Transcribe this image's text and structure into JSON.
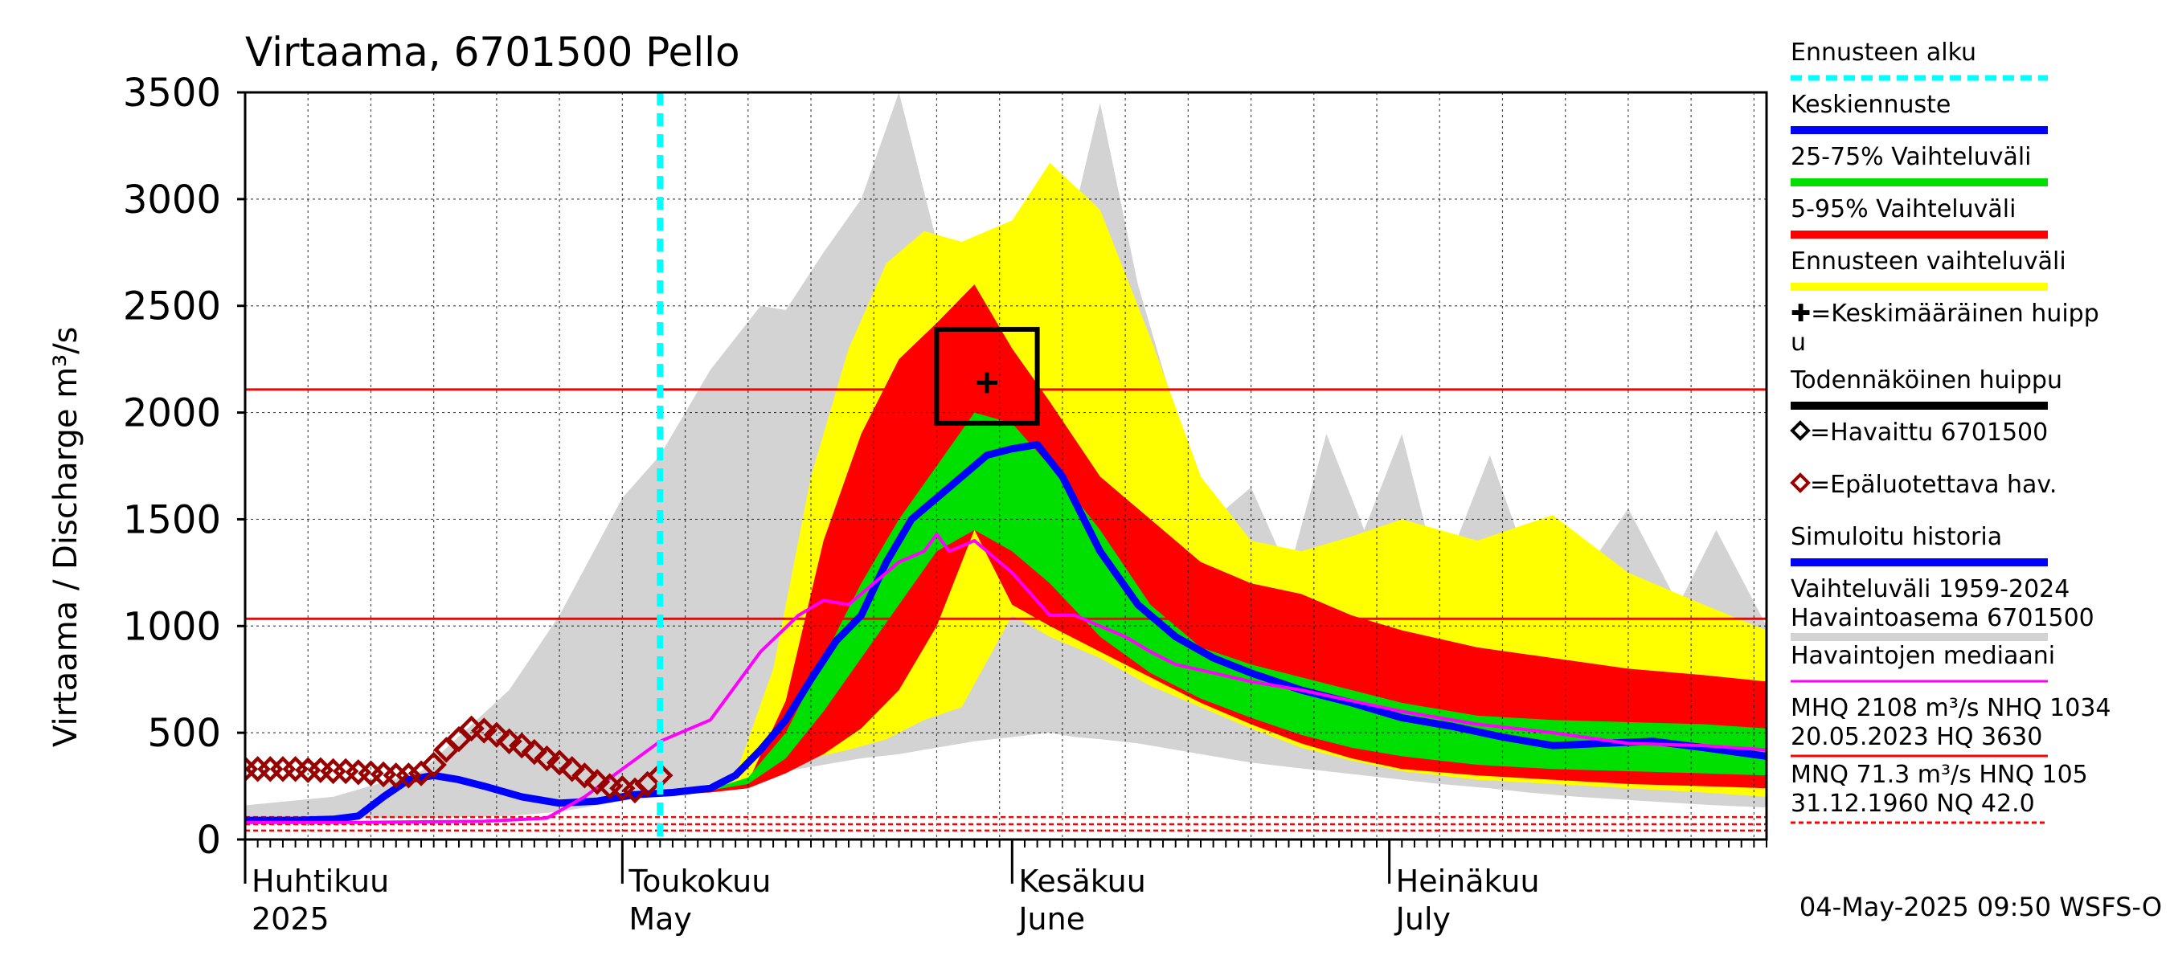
{
  "chart_data": {
    "type": "area",
    "title": "Virtaama, 6701500 Pello",
    "ylabel": "Virtaama / Discharge   m³/s",
    "ylim": [
      0,
      3500
    ],
    "xlim": [
      "2025-04-01",
      "2025-07-31"
    ],
    "yticks": [
      0,
      500,
      1000,
      1500,
      2000,
      2500,
      3000,
      3500
    ],
    "grid": true,
    "legend_position": "right",
    "x_month_labels": [
      {
        "fi": "Huhtikuu",
        "en": "2025",
        "date": "2025-04-01"
      },
      {
        "fi": "Toukokuu",
        "en": "May",
        "date": "2025-05-01"
      },
      {
        "fi": "Kesäkuu",
        "en": "June",
        "date": "2025-06-01"
      },
      {
        "fi": "Heinäkuu",
        "en": "July",
        "date": "2025-07-01"
      }
    ],
    "forecast_start": "2025-05-04",
    "reference_lines": [
      {
        "label": "MHQ",
        "value": 2108,
        "color": "#ff0000",
        "style": "solid"
      },
      {
        "label": "NHQ",
        "value": 1034,
        "color": "#ff0000",
        "style": "solid"
      },
      {
        "label": "MNQ",
        "value": 71.3,
        "color": "#ff0000",
        "style": "dashed"
      },
      {
        "label": "HNQ",
        "value": 105,
        "color": "#ff0000",
        "style": "dashed"
      },
      {
        "label": "NQ",
        "value": 42.0,
        "color": "#ff0000",
        "style": "dashed"
      }
    ],
    "probable_peak_box": {
      "x0": "2025-05-26",
      "x1": "2025-06-03",
      "y0": 1950,
      "y1": 2390
    },
    "mean_peak_marker": {
      "x": "2025-05-30",
      "y": 2140
    },
    "series": [
      {
        "name": "Vaihteluväli 1959-2024 Havaintoasema 6701500",
        "type": "band",
        "color": "#d3d3d3",
        "x": [
          "2025-04-01",
          "2025-04-08",
          "2025-04-15",
          "2025-04-22",
          "2025-04-26",
          "2025-05-01",
          "2025-05-04",
          "2025-05-08",
          "2025-05-12",
          "2025-05-14",
          "2025-05-17",
          "2025-05-20",
          "2025-05-23",
          "2025-05-26",
          "2025-05-29",
          "2025-06-01",
          "2025-06-04",
          "2025-06-06",
          "2025-06-08",
          "2025-06-11",
          "2025-06-14",
          "2025-06-17",
          "2025-06-20",
          "2025-06-23",
          "2025-06-26",
          "2025-06-29",
          "2025-07-02",
          "2025-07-05",
          "2025-07-09",
          "2025-07-12",
          "2025-07-16",
          "2025-07-20",
          "2025-07-24",
          "2025-07-27",
          "2025-07-31"
        ],
        "upper": [
          160,
          200,
          320,
          700,
          1050,
          1600,
          1800,
          2200,
          2500,
          2480,
          2750,
          3000,
          3500,
          2800,
          2700,
          2650,
          2700,
          2950,
          3450,
          2600,
          2000,
          1500,
          1650,
          1250,
          1900,
          1450,
          1900,
          1200,
          1800,
          1300,
          1200,
          1550,
          1100,
          1450,
          1000
        ],
        "lower": [
          100,
          100,
          100,
          110,
          130,
          180,
          220,
          260,
          300,
          320,
          350,
          380,
          400,
          430,
          460,
          480,
          500,
          480,
          470,
          450,
          420,
          390,
          360,
          340,
          320,
          300,
          280,
          260,
          240,
          220,
          200,
          185,
          170,
          160,
          150
        ]
      },
      {
        "name": "Ennusteen vaihteluväli",
        "type": "band",
        "color": "#ffff00",
        "x": [
          "2025-05-04",
          "2025-05-08",
          "2025-05-10",
          "2025-05-13",
          "2025-05-16",
          "2025-05-19",
          "2025-05-22",
          "2025-05-25",
          "2025-05-28",
          "2025-06-01",
          "2025-06-04",
          "2025-06-08",
          "2025-06-12",
          "2025-06-16",
          "2025-06-20",
          "2025-06-24",
          "2025-06-28",
          "2025-07-02",
          "2025-07-08",
          "2025-07-14",
          "2025-07-20",
          "2025-07-26",
          "2025-07-31"
        ],
        "upper": [
          200,
          240,
          300,
          800,
          1700,
          2300,
          2700,
          2850,
          2800,
          2900,
          3170,
          2950,
          2350,
          1700,
          1400,
          1350,
          1420,
          1500,
          1400,
          1520,
          1250,
          1100,
          980
        ],
        "lower": [
          200,
          220,
          250,
          330,
          380,
          420,
          470,
          560,
          620,
          1050,
          950,
          850,
          720,
          620,
          520,
          430,
          370,
          320,
          280,
          260,
          240,
          220,
          200
        ]
      },
      {
        "name": "5-95% Vaihteluväli",
        "type": "band",
        "color": "#ff0000",
        "x": [
          "2025-05-04",
          "2025-05-08",
          "2025-05-11",
          "2025-05-14",
          "2025-05-17",
          "2025-05-20",
          "2025-05-23",
          "2025-05-26",
          "2025-05-29",
          "2025-06-01",
          "2025-06-04",
          "2025-06-08",
          "2025-06-12",
          "2025-06-16",
          "2025-06-20",
          "2025-06-24",
          "2025-06-28",
          "2025-07-02",
          "2025-07-08",
          "2025-07-14",
          "2025-07-20",
          "2025-07-26",
          "2025-07-31"
        ],
        "upper": [
          210,
          230,
          270,
          650,
          1400,
          1900,
          2250,
          2420,
          2600,
          2300,
          2050,
          1700,
          1500,
          1300,
          1200,
          1150,
          1050,
          980,
          900,
          850,
          800,
          770,
          740
        ],
        "lower": [
          210,
          220,
          240,
          310,
          400,
          520,
          700,
          1000,
          1450,
          1100,
          1000,
          880,
          760,
          640,
          540,
          450,
          380,
          330,
          300,
          280,
          260,
          250,
          240
        ]
      },
      {
        "name": "25-75% Vaihteluväli",
        "type": "band",
        "color": "#00e000",
        "x": [
          "2025-05-04",
          "2025-05-08",
          "2025-05-11",
          "2025-05-14",
          "2025-05-17",
          "2025-05-20",
          "2025-05-23",
          "2025-05-26",
          "2025-05-29",
          "2025-06-01",
          "2025-06-04",
          "2025-06-08",
          "2025-06-12",
          "2025-06-16",
          "2025-06-20",
          "2025-06-24",
          "2025-06-28",
          "2025-07-02",
          "2025-07-08",
          "2025-07-14",
          "2025-07-20",
          "2025-07-26",
          "2025-07-31"
        ],
        "upper": [
          215,
          235,
          290,
          500,
          850,
          1200,
          1500,
          1750,
          2000,
          1950,
          1750,
          1450,
          1100,
          900,
          820,
          760,
          700,
          640,
          580,
          560,
          550,
          540,
          520
        ],
        "lower": [
          215,
          230,
          260,
          380,
          600,
          850,
          1100,
          1350,
          1450,
          1350,
          1200,
          950,
          780,
          660,
          570,
          490,
          430,
          390,
          350,
          330,
          320,
          310,
          300
        ]
      },
      {
        "name": "Keskiennuste",
        "type": "line",
        "color": "#0000ff",
        "x": [
          "2025-04-01",
          "2025-04-05",
          "2025-04-08",
          "2025-04-10",
          "2025-04-12",
          "2025-04-14",
          "2025-04-16",
          "2025-04-18",
          "2025-04-20",
          "2025-04-23",
          "2025-04-26",
          "2025-04-29",
          "2025-05-02",
          "2025-05-05",
          "2025-05-08",
          "2025-05-10",
          "2025-05-12",
          "2025-05-14",
          "2025-05-16",
          "2025-05-18",
          "2025-05-20",
          "2025-05-22",
          "2025-05-24",
          "2025-05-26",
          "2025-05-28",
          "2025-05-30",
          "2025-06-01",
          "2025-06-03",
          "2025-06-05",
          "2025-06-08",
          "2025-06-11",
          "2025-06-14",
          "2025-06-17",
          "2025-06-20",
          "2025-06-24",
          "2025-06-28",
          "2025-07-02",
          "2025-07-06",
          "2025-07-10",
          "2025-07-14",
          "2025-07-18",
          "2025-07-22",
          "2025-07-26",
          "2025-07-31"
        ],
        "values": [
          90,
          90,
          95,
          110,
          200,
          280,
          300,
          280,
          250,
          200,
          170,
          180,
          210,
          220,
          240,
          300,
          420,
          560,
          750,
          930,
          1050,
          1300,
          1500,
          1600,
          1700,
          1800,
          1830,
          1850,
          1700,
          1350,
          1100,
          950,
          850,
          780,
          700,
          640,
          570,
          530,
          480,
          440,
          450,
          460,
          430,
          390
        ]
      },
      {
        "name": "Havaintojen mediaani",
        "type": "line",
        "color": "#ff00ff",
        "x": [
          "2025-04-01",
          "2025-04-10",
          "2025-04-20",
          "2025-04-25",
          "2025-04-28",
          "2025-05-01",
          "2025-05-04",
          "2025-05-08",
          "2025-05-12",
          "2025-05-15",
          "2025-05-17",
          "2025-05-19",
          "2025-05-21",
          "2025-05-23",
          "2025-05-25",
          "2025-05-26",
          "2025-05-27",
          "2025-05-29",
          "2025-06-01",
          "2025-06-04",
          "2025-06-06",
          "2025-06-08",
          "2025-06-10",
          "2025-06-12",
          "2025-06-14",
          "2025-06-17",
          "2025-06-20",
          "2025-06-24",
          "2025-06-28",
          "2025-07-02",
          "2025-07-08",
          "2025-07-14",
          "2025-07-20",
          "2025-07-26",
          "2025-07-31"
        ],
        "values": [
          80,
          80,
          85,
          100,
          200,
          330,
          460,
          560,
          880,
          1050,
          1120,
          1100,
          1200,
          1300,
          1350,
          1430,
          1350,
          1400,
          1250,
          1050,
          1050,
          1000,
          950,
          880,
          820,
          780,
          740,
          700,
          650,
          600,
          540,
          500,
          450,
          440,
          420
        ]
      },
      {
        "name": "Epäluotettava hav.",
        "type": "markers",
        "marker": "diamond",
        "color": "#990000",
        "x": [
          "2025-04-01",
          "2025-04-02",
          "2025-04-03",
          "2025-04-04",
          "2025-04-05",
          "2025-04-06",
          "2025-04-07",
          "2025-04-08",
          "2025-04-09",
          "2025-04-10",
          "2025-04-11",
          "2025-04-12",
          "2025-04-13",
          "2025-04-14",
          "2025-04-15",
          "2025-04-16",
          "2025-04-17",
          "2025-04-18",
          "2025-04-19",
          "2025-04-20",
          "2025-04-21",
          "2025-04-22",
          "2025-04-23",
          "2025-04-24",
          "2025-04-25",
          "2025-04-26",
          "2025-04-27",
          "2025-04-28",
          "2025-04-29",
          "2025-04-30",
          "2025-05-01",
          "2025-05-02",
          "2025-05-03",
          "2025-05-04"
        ],
        "values": [
          330,
          330,
          330,
          330,
          330,
          325,
          325,
          320,
          320,
          315,
          310,
          305,
          300,
          300,
          310,
          350,
          420,
          470,
          520,
          510,
          490,
          460,
          440,
          410,
          380,
          360,
          330,
          300,
          270,
          250,
          240,
          230,
          260,
          300
        ]
      }
    ]
  },
  "legend": [
    {
      "label": "Ennusteen alku",
      "color": "#00ffff",
      "style": "dashed"
    },
    {
      "label": "Keskiennuste",
      "color": "#0000ff",
      "style": "thick"
    },
    {
      "label": "25-75% Vaihteluväli",
      "color": "#00e000",
      "style": "thick"
    },
    {
      "label": "5-95% Vaihteluväli",
      "color": "#ff0000",
      "style": "thick"
    },
    {
      "label": "Ennusteen vaihteluväli",
      "color": "#ffff00",
      "style": "thick"
    },
    {
      "label": "✚=Keskimääräinen huipp",
      "label2": "u",
      "style": "none"
    },
    {
      "label": "Todennäköinen huippu",
      "color": "#000000",
      "style": "thick"
    },
    {
      "label": "=Havaittu 6701500",
      "marker": "diamond",
      "markerColor": "#000000",
      "style": "none"
    },
    {
      "label": "=Epäluotettava hav.",
      "marker": "diamond",
      "markerColor": "#990000",
      "style": "none"
    },
    {
      "label": "Simuloitu historia",
      "color": "#0000ff",
      "style": "thick"
    },
    {
      "label": "Vaihteluväli 1959-2024",
      "label2": " Havaintoasema 6701500",
      "color": "#d3d3d3",
      "style": "thick"
    },
    {
      "label": "Havaintojen mediaani",
      "color": "#ff00ff",
      "style": "thin"
    },
    {
      "label": "MHQ 2108 m³/s NHQ 1034",
      "label2": "20.05.2023 HQ 3630",
      "color": "#ff0000",
      "style": "thin"
    },
    {
      "label": "MNQ 71.3 m³/s HNQ  105",
      "label2": "31.12.1960 NQ 42.0",
      "color": "#ff0000",
      "style": "dotted"
    }
  ],
  "footer": "04-May-2025 09:50 WSFS-O"
}
